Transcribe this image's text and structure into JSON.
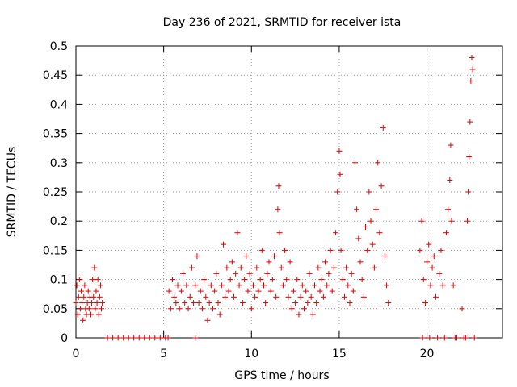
{
  "chart_data": {
    "type": "scatter",
    "title": "Day 236 of 2021, SRMTID for receiver ista",
    "xlabel": "GPS time / hours",
    "ylabel": "SRMTID / TECUs",
    "xlim": [
      0,
      24.3
    ],
    "ylim": [
      0,
      0.5
    ],
    "x_ticks": [
      0,
      5,
      10,
      15,
      20
    ],
    "x_tick_labels": [
      "0",
      "5",
      "10",
      "15",
      "20"
    ],
    "y_ticks": [
      0,
      0.05,
      0.1,
      0.15,
      0.2,
      0.25,
      0.3,
      0.35,
      0.4,
      0.45,
      0.5
    ],
    "y_tick_labels": [
      "0",
      "0.05",
      "0.1",
      "0.15",
      "0.2",
      "0.25",
      "0.3",
      "0.35",
      "0.4",
      "0.45",
      "0.5"
    ],
    "grid": true,
    "marker": "+",
    "color": "#dd0000",
    "series": [
      {
        "values": [
          [
            0.0,
            0.06
          ],
          [
            0.05,
            0.09
          ],
          [
            0.1,
            0.04
          ],
          [
            0.15,
            0.07
          ],
          [
            0.2,
            0.1
          ],
          [
            0.25,
            0.05
          ],
          [
            0.3,
            0.08
          ],
          [
            0.35,
            0.06
          ],
          [
            0.4,
            0.03
          ],
          [
            0.45,
            0.07
          ],
          [
            0.5,
            0.09
          ],
          [
            0.55,
            0.05
          ],
          [
            0.6,
            0.04
          ],
          [
            0.65,
            0.06
          ],
          [
            0.7,
            0.08
          ],
          [
            0.75,
            0.05
          ],
          [
            0.8,
            0.07
          ],
          [
            0.85,
            0.04
          ],
          [
            0.9,
            0.06
          ],
          [
            0.95,
            0.1
          ],
          [
            1.0,
            0.07
          ],
          [
            1.05,
            0.12
          ],
          [
            1.1,
            0.05
          ],
          [
            1.15,
            0.08
          ],
          [
            1.2,
            0.06
          ],
          [
            1.25,
            0.1
          ],
          [
            1.3,
            0.04
          ],
          [
            1.35,
            0.07
          ],
          [
            1.4,
            0.09
          ],
          [
            1.45,
            0.05
          ],
          [
            1.5,
            0.06
          ],
          [
            1.8,
            0.0
          ],
          [
            2.1,
            0.0
          ],
          [
            2.4,
            0.0
          ],
          [
            2.7,
            0.0
          ],
          [
            3.0,
            0.0
          ],
          [
            3.3,
            0.0
          ],
          [
            3.6,
            0.0
          ],
          [
            3.9,
            0.0
          ],
          [
            4.2,
            0.0
          ],
          [
            4.5,
            0.0
          ],
          [
            4.8,
            0.0
          ],
          [
            5.1,
            0.0
          ],
          [
            5.25,
            0.0
          ],
          [
            6.8,
            0.0
          ],
          [
            5.3,
            0.08
          ],
          [
            5.4,
            0.05
          ],
          [
            5.5,
            0.1
          ],
          [
            5.6,
            0.07
          ],
          [
            5.7,
            0.06
          ],
          [
            5.8,
            0.09
          ],
          [
            5.9,
            0.05
          ],
          [
            6.0,
            0.08
          ],
          [
            6.1,
            0.11
          ],
          [
            6.2,
            0.06
          ],
          [
            6.3,
            0.09
          ],
          [
            6.4,
            0.05
          ],
          [
            6.5,
            0.07
          ],
          [
            6.6,
            0.12
          ],
          [
            6.7,
            0.06
          ],
          [
            6.8,
            0.09
          ],
          [
            6.9,
            0.14
          ],
          [
            7.0,
            0.06
          ],
          [
            7.1,
            0.08
          ],
          [
            7.2,
            0.05
          ],
          [
            7.3,
            0.1
          ],
          [
            7.4,
            0.07
          ],
          [
            7.5,
            0.03
          ],
          [
            7.6,
            0.06
          ],
          [
            7.7,
            0.09
          ],
          [
            7.8,
            0.05
          ],
          [
            7.9,
            0.08
          ],
          [
            8.0,
            0.11
          ],
          [
            8.1,
            0.06
          ],
          [
            8.2,
            0.04
          ],
          [
            8.3,
            0.09
          ],
          [
            8.4,
            0.16
          ],
          [
            8.5,
            0.07
          ],
          [
            8.6,
            0.12
          ],
          [
            8.7,
            0.08
          ],
          [
            8.8,
            0.1
          ],
          [
            8.9,
            0.13
          ],
          [
            9.0,
            0.07
          ],
          [
            9.1,
            0.11
          ],
          [
            9.2,
            0.18
          ],
          [
            9.3,
            0.09
          ],
          [
            9.4,
            0.12
          ],
          [
            9.5,
            0.06
          ],
          [
            9.6,
            0.1
          ],
          [
            9.7,
            0.14
          ],
          [
            9.8,
            0.08
          ],
          [
            9.9,
            0.11
          ],
          [
            10.0,
            0.05
          ],
          [
            10.1,
            0.09
          ],
          [
            10.2,
            0.07
          ],
          [
            10.3,
            0.12
          ],
          [
            10.4,
            0.08
          ],
          [
            10.5,
            0.1
          ],
          [
            10.6,
            0.15
          ],
          [
            10.7,
            0.09
          ],
          [
            10.8,
            0.06
          ],
          [
            10.9,
            0.11
          ],
          [
            11.0,
            0.13
          ],
          [
            11.1,
            0.08
          ],
          [
            11.2,
            0.1
          ],
          [
            11.3,
            0.14
          ],
          [
            11.4,
            0.07
          ],
          [
            11.5,
            0.22
          ],
          [
            11.55,
            0.26
          ],
          [
            11.6,
            0.18
          ],
          [
            11.7,
            0.12
          ],
          [
            11.8,
            0.09
          ],
          [
            11.9,
            0.15
          ],
          [
            12.0,
            0.1
          ],
          [
            12.1,
            0.07
          ],
          [
            12.2,
            0.13
          ],
          [
            12.3,
            0.05
          ],
          [
            12.4,
            0.08
          ],
          [
            12.5,
            0.06
          ],
          [
            12.6,
            0.1
          ],
          [
            12.7,
            0.04
          ],
          [
            12.8,
            0.07
          ],
          [
            12.9,
            0.09
          ],
          [
            13.0,
            0.05
          ],
          [
            13.1,
            0.08
          ],
          [
            13.2,
            0.06
          ],
          [
            13.3,
            0.11
          ],
          [
            13.4,
            0.07
          ],
          [
            13.5,
            0.04
          ],
          [
            13.6,
            0.09
          ],
          [
            13.7,
            0.06
          ],
          [
            13.8,
            0.12
          ],
          [
            13.9,
            0.08
          ],
          [
            14.0,
            0.1
          ],
          [
            14.1,
            0.07
          ],
          [
            14.2,
            0.13
          ],
          [
            14.3,
            0.09
          ],
          [
            14.4,
            0.11
          ],
          [
            14.5,
            0.15
          ],
          [
            14.6,
            0.08
          ],
          [
            14.7,
            0.12
          ],
          [
            14.8,
            0.18
          ],
          [
            14.9,
            0.25
          ],
          [
            15.0,
            0.32
          ],
          [
            15.05,
            0.28
          ],
          [
            15.1,
            0.15
          ],
          [
            15.2,
            0.1
          ],
          [
            15.3,
            0.07
          ],
          [
            15.4,
            0.12
          ],
          [
            15.5,
            0.09
          ],
          [
            15.6,
            0.06
          ],
          [
            15.7,
            0.11
          ],
          [
            15.8,
            0.08
          ],
          [
            15.9,
            0.3
          ],
          [
            16.0,
            0.22
          ],
          [
            16.1,
            0.17
          ],
          [
            16.2,
            0.13
          ],
          [
            16.3,
            0.1
          ],
          [
            16.4,
            0.07
          ],
          [
            16.5,
            0.19
          ],
          [
            16.6,
            0.15
          ],
          [
            16.7,
            0.25
          ],
          [
            16.8,
            0.2
          ],
          [
            16.9,
            0.16
          ],
          [
            17.0,
            0.12
          ],
          [
            17.1,
            0.22
          ],
          [
            17.2,
            0.3
          ],
          [
            17.3,
            0.18
          ],
          [
            17.4,
            0.26
          ],
          [
            17.5,
            0.36
          ],
          [
            17.6,
            0.14
          ],
          [
            17.7,
            0.09
          ],
          [
            17.8,
            0.06
          ],
          [
            19.6,
            0.15
          ],
          [
            19.7,
            0.2
          ],
          [
            19.75,
            0.0
          ],
          [
            19.8,
            0.1
          ],
          [
            19.9,
            0.06
          ],
          [
            20.0,
            0.13
          ],
          [
            20.1,
            0.16
          ],
          [
            20.15,
            0.0
          ],
          [
            20.2,
            0.09
          ],
          [
            20.3,
            0.12
          ],
          [
            20.4,
            0.14
          ],
          [
            20.5,
            0.07
          ],
          [
            20.6,
            0.0
          ],
          [
            20.7,
            0.11
          ],
          [
            20.8,
            0.15
          ],
          [
            20.9,
            0.09
          ],
          [
            21.0,
            0.0
          ],
          [
            21.1,
            0.18
          ],
          [
            21.2,
            0.22
          ],
          [
            21.3,
            0.27
          ],
          [
            21.35,
            0.33
          ],
          [
            21.4,
            0.2
          ],
          [
            21.5,
            0.09
          ],
          [
            21.6,
            0.0
          ],
          [
            21.7,
            0.0
          ],
          [
            22.0,
            0.05
          ],
          [
            22.1,
            0.0
          ],
          [
            22.2,
            0.0
          ],
          [
            22.3,
            0.2
          ],
          [
            22.35,
            0.25
          ],
          [
            22.4,
            0.31
          ],
          [
            22.45,
            0.37
          ],
          [
            22.5,
            0.44
          ],
          [
            22.55,
            0.48
          ],
          [
            22.6,
            0.46
          ],
          [
            22.7,
            0.0
          ]
        ]
      }
    ]
  }
}
